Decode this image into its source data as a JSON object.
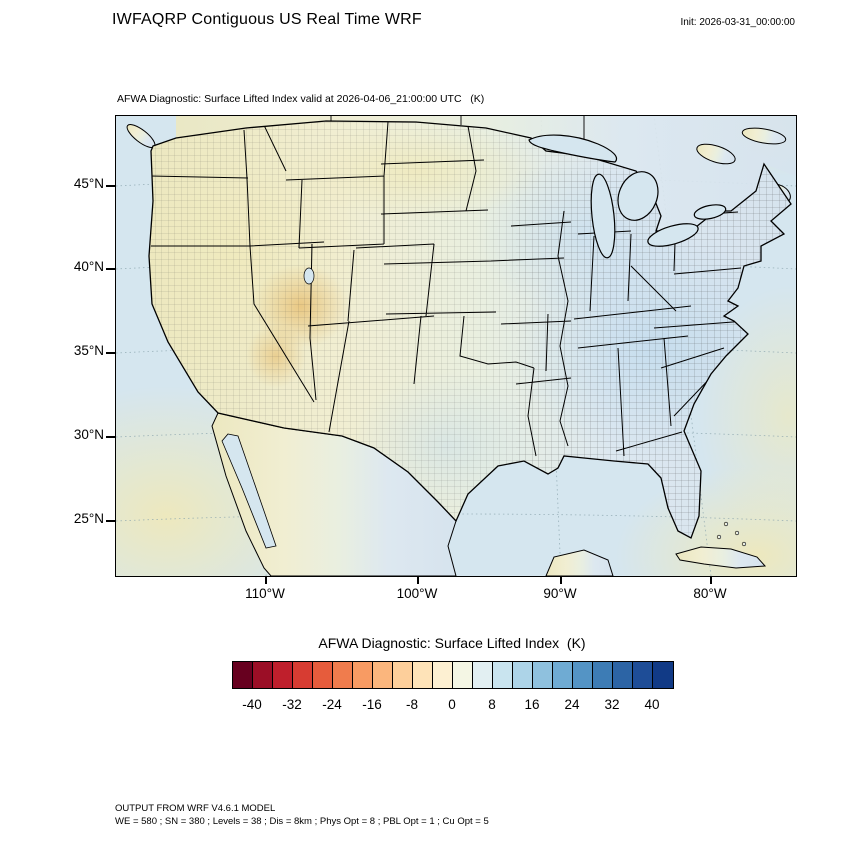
{
  "header": {
    "title": "IWFAQRP Contiguous US Real Time WRF",
    "init_label": "Init: 2026-03-31_00:00:00"
  },
  "map": {
    "subtitle": "AFWA Diagnostic: Surface Lifted Index valid at 2026-04-06_21:00:00 UTC   (K)",
    "y_ticks": [
      "45°N",
      "40°N",
      "35°N",
      "30°N",
      "25°N"
    ],
    "x_ticks": [
      "110°W",
      "100°W",
      "90°W",
      "80°W"
    ],
    "colors": {
      "ocean": "#d5e6ef",
      "land_west": "#ece8c0",
      "land_westmid": "#f1eed2",
      "land_mid": "#e9efe0",
      "land_eastmid": "#dde8f0",
      "land_east": "#d6e3ee",
      "highlight_orange": "#e8c47c",
      "highlight_yellow": "#f0e9b8",
      "highlight_blue": "#c3dcee"
    }
  },
  "colorbar": {
    "title": "AFWA Diagnostic: Surface Lifted Index  (K)",
    "labels": [
      "-40",
      "-32",
      "-24",
      "-16",
      "-8",
      "0",
      "8",
      "16",
      "24",
      "32",
      "40"
    ],
    "colors": [
      "#67001f",
      "#9b0e26",
      "#bf1f2c",
      "#d73c32",
      "#e65c3c",
      "#f07c4d",
      "#f89b63",
      "#fbb67d",
      "#fdcf9b",
      "#fee3b8",
      "#fdf0d2",
      "#f4f6e4",
      "#e2eff2",
      "#c9e4ef",
      "#add4e8",
      "#8fc1de",
      "#6fabd3",
      "#5494c5",
      "#3d7cb5",
      "#2c64a5",
      "#1e4d97",
      "#113a86"
    ]
  },
  "footer": {
    "line1": "OUTPUT FROM WRF V4.6.1 MODEL",
    "line2": "WE = 580 ; SN = 380 ; Levels = 38 ; Dis = 8km ; Phys Opt = 8 ; PBL Opt = 1 ; Cu Opt = 5"
  },
  "chart_data": {
    "type": "heatmap",
    "title": "AFWA Diagnostic: Surface Lifted Index valid at 2026-04-06_21:00:00 UTC (K)",
    "variable": "Surface Lifted Index",
    "units": "K",
    "run_title": "IWFAQRP Contiguous US Real Time WRF",
    "init_time": "2026-03-31_00:00:00",
    "valid_time": "2026-04-06_21:00:00 UTC",
    "projection": "Lambert conformal over contiguous US",
    "x_axis": {
      "label": "longitude",
      "ticks": [
        "110°W",
        "100°W",
        "90°W",
        "80°W"
      ]
    },
    "y_axis": {
      "label": "latitude",
      "ticks": [
        "45°N",
        "40°N",
        "35°N",
        "30°N",
        "25°N"
      ]
    },
    "colorbar_levels": [
      -40,
      -32,
      -24,
      -16,
      -8,
      0,
      8,
      16,
      24,
      32,
      40
    ],
    "pattern_summary": "Slightly negative lifted index (pale yellow/orange, ~-8 to 0 K) across the interior western US and northern plains; slightly positive values (pale blue, ~0 to +8 K) over the Midwest, East and Texas; near-neutral pale tones over the oceans with weak negative bands in the subtropics.",
    "model_footer": "OUTPUT FROM WRF V4.6.1 MODEL | WE = 580 ; SN = 380 ; Levels = 38 ; Dis = 8km ; Phys Opt = 8 ; PBL Opt = 1 ; Cu Opt = 5"
  }
}
